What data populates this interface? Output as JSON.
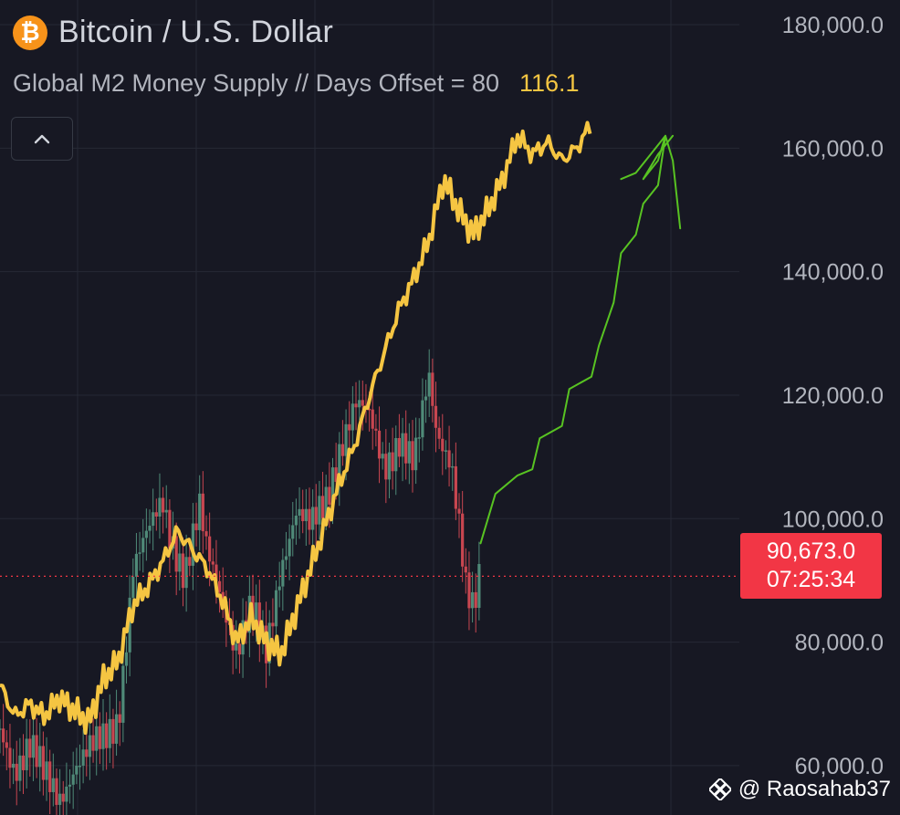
{
  "header": {
    "title": "Bitcoin / U.S. Dollar",
    "coin_icon": "bitcoin-icon",
    "indicator_label": "Global M2 Money Supply // Days Offset = 80",
    "indicator_value": "116.1",
    "collapse_icon": "chevron-up-icon"
  },
  "price_tag": {
    "price": "90,673.0",
    "countdown": "07:25:34"
  },
  "watermark": {
    "icon": "binance-logo-icon",
    "handle": "@ Raosahab37"
  },
  "colors": {
    "background": "#171823",
    "grid": "#262935",
    "btc_up": "#4f8a78",
    "btc_down": "#c84650",
    "m2_line": "#f5c542",
    "projection_line": "#58c322",
    "price_tag": "#f23645"
  },
  "chart_data": {
    "type": "line",
    "y_tick_labels": [
      "180,000.0",
      "160,000.0",
      "140,000.0",
      "120,000.0",
      "100,000.0",
      "80,000.0",
      "60,000.0"
    ],
    "y_ticks": [
      180000,
      160000,
      140000,
      120000,
      100000,
      80000,
      60000
    ],
    "ylim": [
      52000,
      184000
    ],
    "x_range": [
      0,
      100
    ],
    "grid": true,
    "current_price": 90673,
    "series": [
      {
        "key": "btc",
        "style": "candles",
        "points": [
          [
            0,
            66000
          ],
          [
            2,
            60000
          ],
          [
            4,
            63000
          ],
          [
            6,
            58000
          ],
          [
            8,
            55000
          ],
          [
            10,
            60000
          ],
          [
            12,
            62000
          ],
          [
            14,
            64000
          ],
          [
            16,
            68000
          ],
          [
            18,
            92000
          ],
          [
            20,
            97000
          ],
          [
            22,
            103000
          ],
          [
            23,
            98000
          ],
          [
            25,
            91000
          ],
          [
            27,
            101000
          ],
          [
            28,
            94000
          ],
          [
            30,
            88000
          ],
          [
            32,
            79000
          ],
          [
            34,
            85000
          ],
          [
            36,
            78000
          ],
          [
            38,
            93000
          ],
          [
            40,
            101000
          ],
          [
            42,
            98000
          ],
          [
            44,
            103000
          ],
          [
            46,
            112000
          ],
          [
            48,
            118000
          ],
          [
            50,
            116000
          ],
          [
            52,
            109000
          ],
          [
            54,
            113000
          ],
          [
            56,
            108000
          ],
          [
            58,
            123000
          ],
          [
            59,
            115000
          ],
          [
            61,
            110000
          ],
          [
            62,
            100000
          ],
          [
            63,
            88000
          ],
          [
            64,
            84000
          ],
          [
            65,
            91000
          ]
        ]
      },
      {
        "key": "m2",
        "style": "line",
        "points": [
          [
            0,
            73000
          ],
          [
            2,
            68000
          ],
          [
            4,
            70000
          ],
          [
            6,
            68000
          ],
          [
            8,
            71000
          ],
          [
            10,
            69000
          ],
          [
            12,
            67000
          ],
          [
            14,
            74000
          ],
          [
            16,
            77000
          ],
          [
            18,
            86000
          ],
          [
            20,
            89000
          ],
          [
            22,
            93000
          ],
          [
            24,
            98000
          ],
          [
            26,
            95000
          ],
          [
            28,
            92000
          ],
          [
            30,
            87000
          ],
          [
            32,
            80000
          ],
          [
            34,
            84000
          ],
          [
            36,
            80000
          ],
          [
            38,
            78000
          ],
          [
            40,
            85000
          ],
          [
            42,
            92000
          ],
          [
            44,
            99000
          ],
          [
            46,
            106000
          ],
          [
            48,
            112000
          ],
          [
            50,
            120000
          ],
          [
            52,
            127000
          ],
          [
            54,
            134000
          ],
          [
            56,
            139000
          ],
          [
            58,
            145000
          ],
          [
            60,
            155000
          ],
          [
            62,
            150000
          ],
          [
            64,
            146000
          ],
          [
            66,
            150000
          ],
          [
            68,
            155000
          ],
          [
            70,
            162000
          ],
          [
            72,
            159000
          ],
          [
            74,
            161000
          ],
          [
            76,
            158000
          ],
          [
            78,
            160000
          ],
          [
            80,
            164000
          ]
        ]
      },
      {
        "key": "projection",
        "style": "line",
        "points": [
          [
            65,
            96000
          ],
          [
            67,
            104000
          ],
          [
            70,
            107000
          ],
          [
            72,
            108000
          ],
          [
            73,
            113000
          ],
          [
            76,
            115000
          ],
          [
            77,
            121000
          ],
          [
            80,
            123000
          ],
          [
            81,
            128000
          ],
          [
            83,
            135000
          ],
          [
            84,
            143000
          ],
          [
            86,
            146000
          ],
          [
            87,
            151000
          ],
          [
            89,
            154000
          ],
          [
            90,
            162000
          ],
          [
            91,
            158000
          ],
          [
            92,
            147000
          ]
        ]
      },
      {
        "key": "projection_arrow",
        "style": "line",
        "points": [
          [
            84,
            155000
          ],
          [
            86,
            156000
          ],
          [
            88,
            159000
          ],
          [
            90,
            162000
          ],
          [
            89,
            158000
          ],
          [
            87,
            155000
          ],
          [
            89,
            159000
          ],
          [
            91,
            162000
          ]
        ]
      }
    ]
  }
}
